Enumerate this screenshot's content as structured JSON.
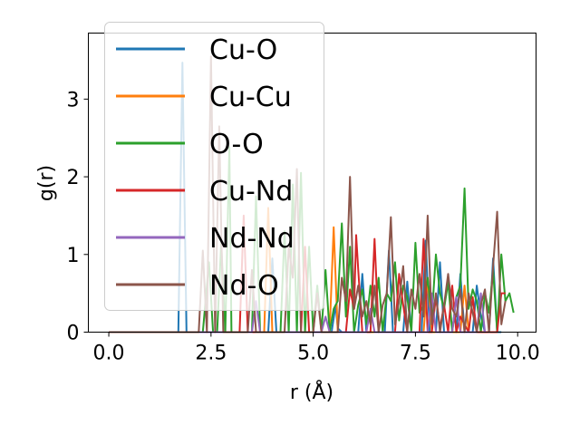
{
  "chart_data": {
    "type": "line",
    "xlabel": "r (Å)",
    "ylabel": "g(r)",
    "xlim": [
      -0.5,
      10.45
    ],
    "ylim": [
      0,
      3.85
    ],
    "xticks": [
      0.0,
      2.5,
      5.0,
      7.5,
      10.0
    ],
    "xtick_labels": [
      "0.0",
      "2.5",
      "5.0",
      "7.5",
      "10.0"
    ],
    "yticks": [
      0,
      1,
      2,
      3
    ],
    "ytick_labels": [
      "0",
      "1",
      "2",
      "3"
    ],
    "grid": false,
    "legend_position": "upper-left",
    "series": [
      {
        "name": "Cu-O",
        "color": "#1f77b4",
        "x": [
          0.0,
          1.7,
          1.8,
          1.9,
          1.95,
          2.0,
          3.9,
          4.0,
          4.1,
          4.2,
          5.45,
          5.55,
          5.6,
          5.7,
          6.1,
          6.2,
          6.3,
          6.75,
          6.85,
          6.95,
          7.2,
          7.3,
          7.4,
          7.65,
          7.75,
          7.85,
          8.0,
          8.1,
          8.2,
          8.5,
          8.6,
          8.7,
          8.9,
          9.0,
          9.1,
          9.2,
          9.3,
          9.4,
          9.5,
          9.6
        ],
        "y": [
          0.0,
          0.0,
          3.47,
          0.0,
          0.0,
          0.0,
          0.0,
          0.95,
          0.0,
          0.0,
          0.0,
          0.35,
          0.05,
          0.0,
          0.0,
          0.75,
          0.0,
          0.0,
          1.05,
          0.0,
          0.0,
          0.65,
          0.0,
          0.0,
          1.18,
          0.0,
          0.0,
          0.9,
          0.0,
          0.0,
          0.75,
          0.0,
          0.0,
          0.6,
          0.2,
          0.0,
          0.0,
          0.95,
          0.0,
          0.0
        ]
      },
      {
        "name": "Cu-Cu",
        "color": "#ff7f0e",
        "x": [
          0.0,
          3.8,
          3.9,
          4.0,
          5.4,
          5.5,
          5.6,
          7.7,
          7.8,
          7.9,
          8.6,
          8.7,
          8.8
        ],
        "y": [
          0.0,
          0.0,
          1.6,
          0.0,
          0.0,
          1.35,
          0.0,
          0.0,
          0.7,
          0.0,
          0.0,
          0.6,
          0.0
        ]
      },
      {
        "name": "O-O",
        "color": "#2ca02c",
        "x": [
          0.0,
          2.3,
          2.45,
          2.55,
          2.65,
          2.75,
          2.85,
          2.95,
          3.0,
          3.1,
          3.5,
          3.6,
          3.7,
          3.8,
          4.2,
          4.3,
          4.4,
          4.5,
          4.6,
          4.7,
          4.8,
          4.9,
          5.0,
          5.1,
          5.2,
          5.3,
          5.4,
          5.5,
          5.6,
          5.7,
          5.8,
          5.9,
          6.0,
          6.1,
          6.2,
          6.3,
          6.4,
          6.5,
          6.6,
          6.7,
          6.8,
          6.9,
          7.0,
          7.1,
          7.2,
          7.3,
          7.4,
          7.5,
          7.6,
          7.7,
          7.8,
          7.9,
          8.0,
          8.1,
          8.2,
          8.3,
          8.4,
          8.5,
          8.6,
          8.7,
          8.8,
          8.9,
          9.0,
          9.1,
          9.2,
          9.3,
          9.4,
          9.5,
          9.6,
          9.7,
          9.8,
          9.9
        ],
        "y": [
          0.0,
          0.0,
          0.9,
          0.0,
          0.0,
          1.15,
          0.0,
          2.38,
          0.0,
          0.0,
          0.0,
          1.75,
          0.0,
          0.0,
          0.0,
          1.3,
          0.0,
          1.9,
          0.0,
          2.05,
          0.0,
          1.1,
          0.0,
          0.6,
          0.0,
          0.8,
          0.0,
          0.3,
          0.4,
          1.4,
          0.2,
          1.1,
          0.0,
          0.35,
          0.55,
          0.1,
          0.6,
          0.2,
          0.7,
          0.0,
          0.5,
          0.4,
          0.9,
          0.15,
          0.6,
          0.45,
          0.0,
          1.15,
          0.25,
          0.35,
          0.7,
          0.2,
          1.0,
          0.5,
          0.3,
          0.65,
          0.0,
          0.45,
          0.6,
          1.85,
          0.3,
          0.55,
          0.4,
          0.0,
          0.5,
          0.25,
          0.8,
          0.0,
          1.0,
          0.4,
          0.5,
          0.25
        ]
      },
      {
        "name": "Cu-Nd",
        "color": "#d62728",
        "x": [
          0.0,
          3.2,
          3.3,
          3.4,
          4.7,
          4.8,
          4.9,
          5.8,
          5.9,
          6.0,
          6.05,
          6.1,
          6.2,
          6.4,
          6.5,
          6.6,
          7.0,
          7.1,
          7.2,
          7.3,
          7.6,
          7.7,
          7.8,
          7.9,
          8.0,
          8.1,
          8.2,
          8.3,
          8.4,
          8.5,
          8.6,
          8.8,
          8.9,
          9.0,
          9.5,
          9.6,
          9.7
        ],
        "y": [
          0.0,
          0.0,
          1.5,
          0.0,
          0.0,
          1.1,
          0.0,
          0.0,
          0.55,
          0.3,
          1.25,
          0.8,
          0.0,
          0.0,
          1.2,
          0.0,
          0.0,
          0.75,
          0.35,
          0.0,
          0.0,
          1.2,
          0.0,
          0.0,
          0.45,
          0.05,
          0.35,
          0.0,
          0.6,
          0.0,
          0.2,
          0.0,
          0.45,
          0.0,
          0.0,
          0.5,
          0.5
        ]
      },
      {
        "name": "Nd-Nd",
        "color": "#9467bd",
        "x": [
          0.0,
          3.5,
          3.6,
          3.7,
          5.2,
          5.3,
          5.4,
          6.3,
          6.4,
          6.5,
          7.8,
          7.9,
          8.0,
          8.4,
          8.5,
          8.6,
          9.0,
          9.1,
          9.2
        ],
        "y": [
          0.0,
          0.0,
          0.4,
          0.0,
          0.0,
          0.2,
          0.0,
          0.0,
          0.3,
          0.0,
          0.0,
          0.5,
          0.0,
          0.0,
          0.45,
          0.0,
          0.0,
          0.5,
          0.0
        ]
      },
      {
        "name": "Nd-O",
        "color": "#8c564b",
        "x": [
          0.0,
          2.2,
          2.3,
          2.4,
          2.5,
          2.6,
          2.7,
          2.8,
          2.9,
          3.4,
          3.5,
          3.6,
          4.3,
          4.4,
          4.5,
          4.6,
          4.7,
          5.0,
          5.1,
          5.2,
          5.6,
          5.7,
          5.8,
          5.9,
          6.0,
          6.1,
          6.2,
          6.3,
          6.4,
          6.5,
          6.6,
          6.7,
          6.8,
          6.9,
          7.0,
          7.1,
          7.2,
          7.3,
          7.4,
          7.5,
          7.6,
          7.7,
          7.8,
          7.9,
          8.0,
          8.1,
          8.2,
          8.3,
          8.4,
          8.5,
          8.6,
          8.7,
          8.8,
          8.9,
          9.0,
          9.1,
          9.2,
          9.3,
          9.4,
          9.5,
          9.6,
          9.7
        ],
        "y": [
          0.0,
          0.0,
          1.05,
          0.0,
          3.55,
          0.0,
          2.65,
          0.0,
          0.0,
          0.0,
          0.8,
          0.0,
          0.0,
          1.1,
          0.7,
          2.1,
          0.0,
          0.0,
          0.5,
          0.0,
          0.0,
          0.7,
          0.4,
          2.0,
          0.3,
          0.6,
          0.2,
          0.4,
          0.1,
          0.6,
          0.0,
          0.35,
          0.5,
          1.48,
          0.1,
          0.4,
          0.85,
          0.0,
          0.55,
          0.3,
          0.75,
          0.2,
          1.5,
          0.1,
          0.5,
          0.0,
          0.35,
          0.75,
          0.3,
          0.2,
          0.55,
          0.0,
          0.5,
          0.25,
          0.0,
          0.35,
          0.55,
          0.0,
          0.85,
          1.55,
          0.1,
          0.4
        ]
      }
    ]
  }
}
